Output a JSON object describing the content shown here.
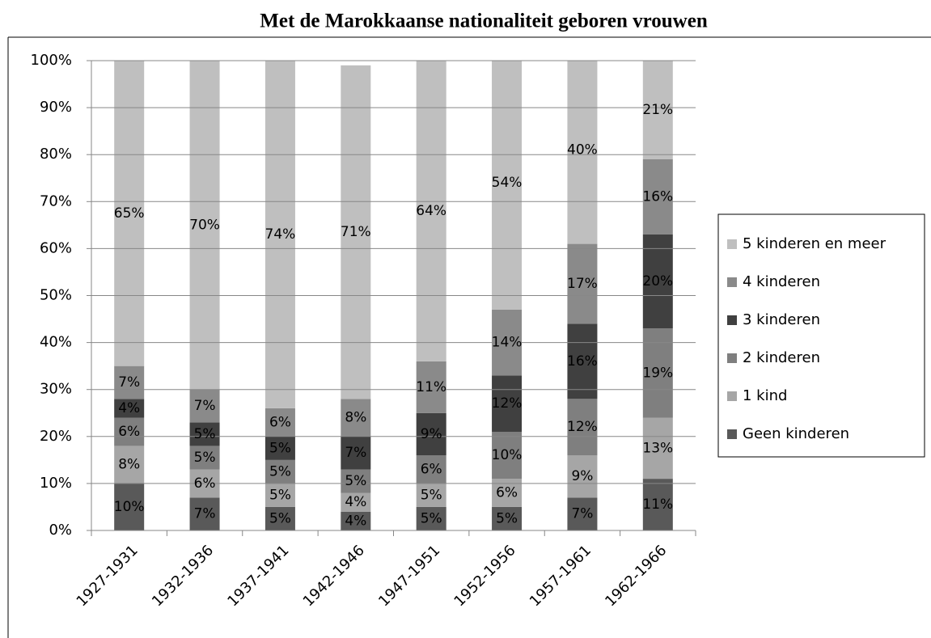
{
  "chart_data": {
    "type": "stacked_bar",
    "title": "Met de Marokkaanse nationaliteit geboren vrouwen",
    "categories": [
      "1927-1931",
      "1932-1936",
      "1937-1941",
      "1942-1946",
      "1947-1951",
      "1952-1956",
      "1957-1961",
      "1962-1966"
    ],
    "series": [
      {
        "name": "Geen kinderen",
        "color": "#595959",
        "values": [
          10,
          7,
          5,
          4,
          5,
          5,
          7,
          11
        ],
        "value_labels": [
          "10%",
          "7%",
          "5%",
          "4%",
          "5%",
          "5%",
          "7%",
          "11%"
        ]
      },
      {
        "name": "1 kind",
        "color": "#a6a6a6",
        "values": [
          8,
          6,
          5,
          4,
          5,
          6,
          9,
          13
        ],
        "value_labels": [
          "8%",
          "6%",
          "5%",
          "4%",
          "5%",
          "6%",
          "9%",
          "13%"
        ]
      },
      {
        "name": "2 kinderen",
        "color": "#7f7f7f",
        "values": [
          6,
          5,
          5,
          5,
          6,
          10,
          12,
          19
        ],
        "value_labels": [
          "6%",
          "5%",
          "5%",
          "5%",
          "6%",
          "10%",
          "12%",
          "19%"
        ]
      },
      {
        "name": "3 kinderen",
        "color": "#404040",
        "values": [
          4,
          5,
          5,
          7,
          9,
          12,
          16,
          20
        ],
        "value_labels": [
          "4%",
          "5%",
          "5%",
          "7%",
          "9%",
          "12%",
          "16%",
          "20%"
        ]
      },
      {
        "name": "4 kinderen",
        "color": "#8a8a8a",
        "values": [
          7,
          7,
          6,
          8,
          11,
          14,
          17,
          16
        ],
        "value_labels": [
          "7%",
          "7%",
          "6%",
          "8%",
          "11%",
          "14%",
          "17%",
          "16%"
        ]
      },
      {
        "name": "5 kinderen en meer",
        "color": "#bfbfbf",
        "values": [
          65,
          70,
          74,
          71,
          64,
          54,
          40,
          21
        ],
        "value_labels": [
          "65%",
          "70%",
          "74%",
          "71%",
          "64%",
          "54%",
          "40%",
          "21%"
        ]
      }
    ],
    "ylim": [
      0,
      100
    ],
    "yticks": [
      {
        "value": 0,
        "label": "0%"
      },
      {
        "value": 10,
        "label": "10%"
      },
      {
        "value": 20,
        "label": "20%"
      },
      {
        "value": 30,
        "label": "30%"
      },
      {
        "value": 40,
        "label": "40%"
      },
      {
        "value": 50,
        "label": "50%"
      },
      {
        "value": 60,
        "label": "60%"
      },
      {
        "value": 70,
        "label": "70%"
      },
      {
        "value": 80,
        "label": "80%"
      },
      {
        "value": 90,
        "label": "90%"
      },
      {
        "value": 100,
        "label": "100%"
      }
    ],
    "grid": true,
    "legend": "right"
  }
}
